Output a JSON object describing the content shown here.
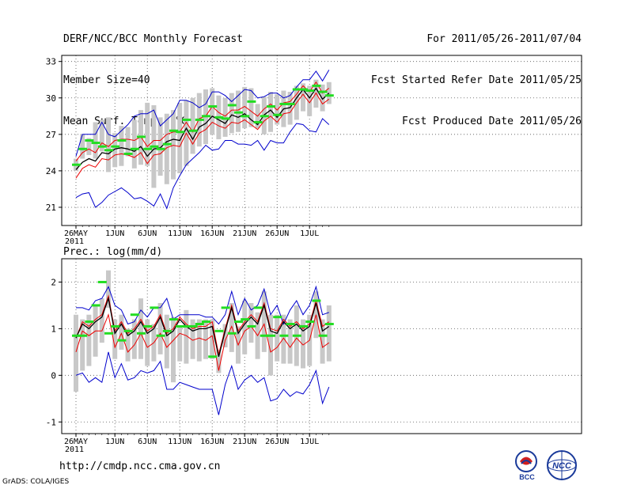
{
  "header": {
    "title": "DERF/NCC/BCC Monthly Forecast",
    "member_size": "Member Size=40",
    "variable": "Mean Surf. Temp.: °C",
    "period": "For 2011/05/26-2011/07/04",
    "started": "Fcst Started Refer Date 2011/05/25",
    "produced": "Fcst Produced Date 2011/05/26"
  },
  "footer": {
    "url": "http://cmdp.ncc.cma.gov.cn",
    "grads": "GrADS: COLA/IGES",
    "logo_bcc": "BCC",
    "logo_ncc": "NCC"
  },
  "colors": {
    "spread": "#c8c8c8",
    "median": "#22dd22",
    "mean": "#000000",
    "inner": "#ee0000",
    "outer": "#0000cc"
  },
  "chart_data": [
    {
      "type": "line",
      "name": "temperature",
      "title": "Mean Surf. Temp.: °C",
      "x_labels": [
        "26MAY",
        "1JUN",
        "6JUN",
        "11JUN",
        "16JUN",
        "21JUN",
        "26JUN",
        "1JUL"
      ],
      "x_label_days": [
        1,
        7,
        12,
        17,
        22,
        27,
        32,
        37
      ],
      "year_label": "2011",
      "ylim": [
        19.5,
        33.5
      ],
      "yticks": [
        21,
        24,
        27,
        30,
        33
      ],
      "days": 40,
      "series": [
        {
          "name": "max",
          "color": "#0000cc",
          "values": [
            25.2,
            27,
            27,
            27,
            28,
            27,
            26.8,
            27.3,
            27.8,
            28.5,
            28.7,
            28.7,
            29,
            27.7,
            28.2,
            28.7,
            29.8,
            29.8,
            29.6,
            29.2,
            29.5,
            30.5,
            30.5,
            30.2,
            29.7,
            30.2,
            30.7,
            30.6,
            30,
            30.1,
            30.4,
            30.4,
            30,
            30.2,
            30.9,
            31.5,
            31.5,
            32.2,
            31.4,
            32.3
          ]
        },
        {
          "name": "upper",
          "color": "#ee0000",
          "values": [
            24.8,
            25.5,
            25.8,
            25.5,
            26.3,
            26,
            26.5,
            26.6,
            26.6,
            26.5,
            26.8,
            26,
            26.5,
            26.5,
            27,
            27.2,
            27.2,
            28,
            27.2,
            28.3,
            28.5,
            29.3,
            28.8,
            28.5,
            29,
            29,
            29.3,
            28.9,
            28.5,
            29.1,
            29.5,
            29,
            29.6,
            29.7,
            30.3,
            31,
            30.5,
            31.3,
            30.4,
            30.8
          ]
        },
        {
          "name": "mean",
          "color": "#000000",
          "values": [
            24.1,
            24.7,
            25,
            24.8,
            25.5,
            25.4,
            25.8,
            25.9,
            25.8,
            25.6,
            26,
            25.2,
            25.8,
            25.9,
            26.4,
            26.6,
            26.5,
            27.5,
            26.6,
            27.6,
            27.9,
            28.5,
            28.2,
            27.9,
            28.6,
            28.4,
            28.7,
            28.2,
            27.8,
            28.6,
            29,
            28.4,
            29.1,
            29.2,
            30,
            30.7,
            30,
            30.8,
            29.9,
            30.4
          ]
        },
        {
          "name": "lower",
          "color": "#ee0000",
          "values": [
            23.4,
            24.2,
            24.5,
            24.3,
            25,
            24.9,
            25.3,
            25.4,
            25.3,
            25.1,
            25.5,
            24.6,
            25.3,
            25.4,
            25.9,
            26.1,
            26,
            27.1,
            26.2,
            27.1,
            27.4,
            28,
            27.7,
            27.5,
            28,
            27.9,
            28.2,
            27.8,
            27.4,
            28.1,
            28.5,
            28,
            28.7,
            28.8,
            29.6,
            30.3,
            29.6,
            30.4,
            29.5,
            29.9
          ]
        },
        {
          "name": "min",
          "color": "#0000cc",
          "values": [
            21.8,
            22.1,
            22.2,
            21,
            21.4,
            22,
            22.3,
            22.6,
            22.2,
            21.7,
            21.8,
            21.5,
            21.1,
            22.1,
            20.9,
            22.6,
            23.6,
            24.5,
            25,
            25.5,
            26.1,
            25.7,
            25.8,
            26.5,
            26.5,
            26.2,
            26.2,
            26.1,
            26.5,
            25.7,
            26.5,
            26.3,
            26.3,
            27.2,
            27.9,
            27.8,
            27.3,
            27.2,
            28.3,
            27.8
          ]
        }
      ],
      "bars": {
        "name": "spread",
        "color": "#c8c8c8",
        "low": [
          24,
          25,
          25.3,
          25,
          25.6,
          23.9,
          24.3,
          24.4,
          25.2,
          24.2,
          24.5,
          24.4,
          22.6,
          23.6,
          22.9,
          23.3,
          23.8,
          24.4,
          25.4,
          26,
          26.2,
          27,
          26.6,
          26.8,
          27.1,
          27.2,
          27.5,
          27.6,
          27.5,
          27,
          27.2,
          27.8,
          27.6,
          27.8,
          28.2,
          28.9,
          28.5,
          29.2,
          28.9,
          29.5
        ],
        "high": [
          25,
          27,
          26.7,
          28,
          28.2,
          28.4,
          27.1,
          27.7,
          27.6,
          28.2,
          29,
          29.6,
          29.4,
          28.4,
          28.7,
          29,
          29.6,
          29.8,
          30,
          30.4,
          30.7,
          30.8,
          30.2,
          30,
          30.4,
          30.6,
          30.9,
          30.8,
          29.5,
          30.1,
          30.5,
          30.3,
          30.6,
          30.5,
          31,
          31.2,
          31,
          31.5,
          31.1,
          31.3
        ]
      },
      "median": [
        24.5,
        25.8,
        26.5,
        26.3,
        26,
        25.7,
        26,
        26.5,
        25.4,
        25.8,
        26.8,
        25.8,
        26,
        25.8,
        26.2,
        27.3,
        27.2,
        28.2,
        27.3,
        28.2,
        28.5,
        29.3,
        28.4,
        28.3,
        29.4,
        28.8,
        28.5,
        29.7,
        28,
        28.5,
        29.3,
        28.6,
        29.5,
        29.5,
        30.7,
        30.7,
        30.6,
        31,
        30.5,
        30.2
      ]
    },
    {
      "type": "line",
      "name": "precipitation",
      "title": "Prec.: log(mm/d)",
      "x_labels": [
        "26MAY",
        "1JUN",
        "6JUN",
        "11JUN",
        "16JUN",
        "21JUN",
        "26JUN",
        "1JUL"
      ],
      "x_label_days": [
        1,
        7,
        12,
        17,
        22,
        27,
        32,
        37
      ],
      "year_label": "2011",
      "ylim": [
        -1.25,
        2.5
      ],
      "yticks": [
        -1,
        0,
        1,
        2
      ],
      "days": 40,
      "series": [
        {
          "name": "max",
          "color": "#0000cc",
          "values": [
            1.45,
            1.45,
            1.4,
            1.6,
            1.65,
            1.9,
            1.5,
            1.4,
            1.1,
            1.15,
            1.4,
            1.25,
            1.45,
            1.45,
            1.65,
            1.2,
            1.3,
            1.3,
            1.3,
            1.3,
            1.25,
            1.25,
            1.1,
            1.3,
            1.8,
            1.3,
            1.65,
            1.4,
            1.5,
            1.85,
            1.3,
            1.5,
            1.1,
            1.4,
            1.6,
            1.3,
            1.5,
            1.9,
            1.3,
            1.35
          ]
        },
        {
          "name": "upper",
          "color": "#ee0000",
          "values": [
            0.8,
            1.15,
            1.05,
            1.2,
            1.3,
            1.7,
            0.95,
            1.15,
            0.9,
            1,
            1.2,
            0.95,
            1.05,
            1.3,
            0.9,
            1,
            1.25,
            1.1,
            1,
            1.05,
            1.05,
            1.15,
            0.45,
            1,
            1.5,
            0.95,
            1.15,
            1.3,
            1.15,
            1.55,
            1,
            0.95,
            1.2,
            1.05,
            1.15,
            1,
            1.1,
            1.6,
            1.05,
            1.15
          ]
        },
        {
          "name": "mean",
          "color": "#000000",
          "values": [
            0.8,
            1.1,
            1,
            1.15,
            1.25,
            1.65,
            0.9,
            1.1,
            0.85,
            0.95,
            1.15,
            0.9,
            1,
            1.25,
            0.85,
            0.95,
            1.2,
            1.05,
            0.95,
            1,
            1,
            1.05,
            0.4,
            0.95,
            1.45,
            0.9,
            1.1,
            1.25,
            1.1,
            1.5,
            0.95,
            0.9,
            1.15,
            1,
            1.1,
            0.95,
            1.05,
            1.55,
            0.95,
            1.05
          ]
        },
        {
          "name": "lower",
          "color": "#ee0000",
          "values": [
            0.5,
            0.95,
            0.85,
            0.95,
            0.95,
            1.3,
            0.6,
            0.9,
            0.5,
            0.65,
            0.9,
            0.6,
            0.7,
            0.9,
            0.6,
            0.75,
            0.9,
            0.85,
            0.75,
            0.8,
            0.75,
            0.85,
            0.1,
            0.75,
            1.05,
            0.65,
            0.95,
            1.05,
            0.85,
            1.1,
            0.5,
            0.6,
            0.8,
            0.6,
            0.8,
            0.65,
            0.75,
            1.3,
            0.6,
            0.7
          ]
        },
        {
          "name": "min",
          "color": "#0000cc",
          "values": [
            0,
            0.05,
            -0.15,
            -0.05,
            -0.15,
            0.5,
            -0.05,
            0.25,
            -0.1,
            -0.05,
            0.1,
            0.05,
            0.1,
            0.3,
            -0.3,
            -0.3,
            -0.15,
            -0.2,
            -0.25,
            -0.3,
            -0.3,
            -0.3,
            -0.85,
            -0.2,
            0.2,
            -0.3,
            -0.1,
            0,
            -0.15,
            -0.05,
            -0.55,
            -0.5,
            -0.3,
            -0.45,
            -0.35,
            -0.4,
            -0.2,
            0.1,
            -0.6,
            -0.25
          ]
        }
      ],
      "bars": {
        "name": "spread",
        "color": "#c8c8c8",
        "low": [
          -0.35,
          0.1,
          0.2,
          0.4,
          0.7,
          1.45,
          0.35,
          0.55,
          0.3,
          0.35,
          0.35,
          0.2,
          0.3,
          0.45,
          0.15,
          -0.15,
          0.3,
          0.25,
          0.35,
          0.3,
          0.35,
          0.35,
          0.05,
          0.6,
          0.5,
          0.25,
          0.45,
          0.7,
          0.35,
          0.5,
          0,
          0.3,
          0.25,
          0.25,
          0.2,
          0.15,
          0.2,
          0.8,
          0.25,
          0.3
        ],
        "high": [
          1.3,
          1.2,
          1.3,
          1.5,
          1.65,
          2.25,
          1.2,
          1.3,
          1,
          1.2,
          1.65,
          1.2,
          1.1,
          1.55,
          1.3,
          1.25,
          1.05,
          1.4,
          1.2,
          1.2,
          1.2,
          1.2,
          0.55,
          1.1,
          1.55,
          1.05,
          1.6,
          1.55,
          1.35,
          1.8,
          1.3,
          1.3,
          1.3,
          1.2,
          1.5,
          1.2,
          1.3,
          1.8,
          1.2,
          1.5
        ]
      },
      "median": [
        0.85,
        0.85,
        1.15,
        1.5,
        2,
        0.9,
        1.05,
        0.75,
        0.95,
        1.3,
        0.9,
        1.05,
        1.45,
        0.85,
        0.95,
        1.2,
        1.05,
        1.05,
        1.05,
        1.1,
        1.15,
        0.4,
        0.95,
        1.45,
        0.9,
        1.15,
        1.2,
        1.05,
        1.45,
        0.85,
        0.85,
        1.25,
        0.85,
        1.1,
        0.85,
        1.05,
        1.15,
        1.6,
        0.85,
        1.1
      ]
    }
  ]
}
